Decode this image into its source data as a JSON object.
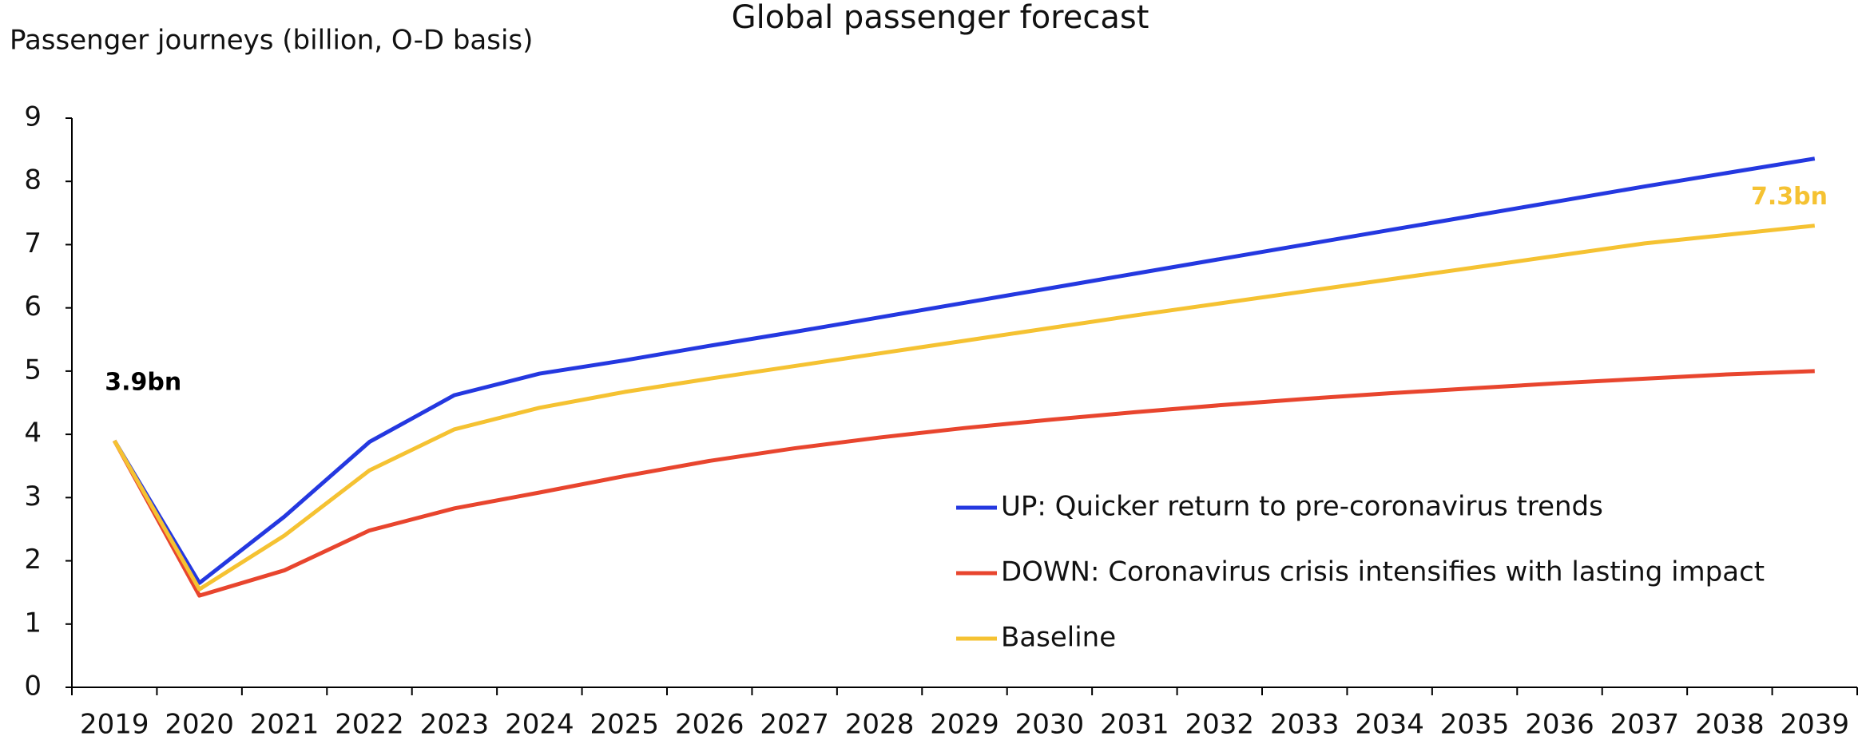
{
  "chart_data": {
    "type": "line",
    "title": "Global passenger forecast",
    "y_label": "Passenger journeys (billion, O-D basis)",
    "categories": [
      "2019",
      "2020",
      "2021",
      "2022",
      "2023",
      "2024",
      "2025",
      "2026",
      "2027",
      "2028",
      "2029",
      "2030",
      "2031",
      "2032",
      "2033",
      "2034",
      "2035",
      "2036",
      "2037",
      "2038",
      "2039"
    ],
    "series": [
      {
        "name": "UP: Quicker return to pre-coronavirus trends",
        "color": "#2438e0",
        "values": [
          3.9,
          1.65,
          2.7,
          3.88,
          4.62,
          4.96,
          5.17,
          5.4,
          5.62,
          5.85,
          6.08,
          6.31,
          6.54,
          6.77,
          7.0,
          7.23,
          7.46,
          7.69,
          7.92,
          8.14,
          8.36
        ]
      },
      {
        "name": "DOWN: Coronavirus crisis intensifies with lasting impact",
        "color": "#e8452e",
        "values": [
          3.9,
          1.45,
          1.85,
          2.48,
          2.83,
          3.08,
          3.34,
          3.58,
          3.78,
          3.95,
          4.1,
          4.23,
          4.35,
          4.46,
          4.56,
          4.65,
          4.73,
          4.81,
          4.88,
          4.95,
          5.0
        ]
      },
      {
        "name": "Baseline",
        "color": "#f5c232",
        "values": [
          3.9,
          1.55,
          2.4,
          3.43,
          4.08,
          4.42,
          4.67,
          4.88,
          5.08,
          5.28,
          5.48,
          5.68,
          5.88,
          6.07,
          6.26,
          6.45,
          6.64,
          6.83,
          7.02,
          7.16,
          7.3
        ]
      }
    ],
    "annotations": [
      {
        "text": "3.9bn",
        "color": "#000000"
      },
      {
        "text": "7.3bn",
        "color": "#f5c232"
      }
    ],
    "ylim": [
      0,
      9
    ],
    "yticks": [
      0,
      1,
      2,
      3,
      4,
      5,
      6,
      7,
      8,
      9
    ],
    "grid": false
  }
}
